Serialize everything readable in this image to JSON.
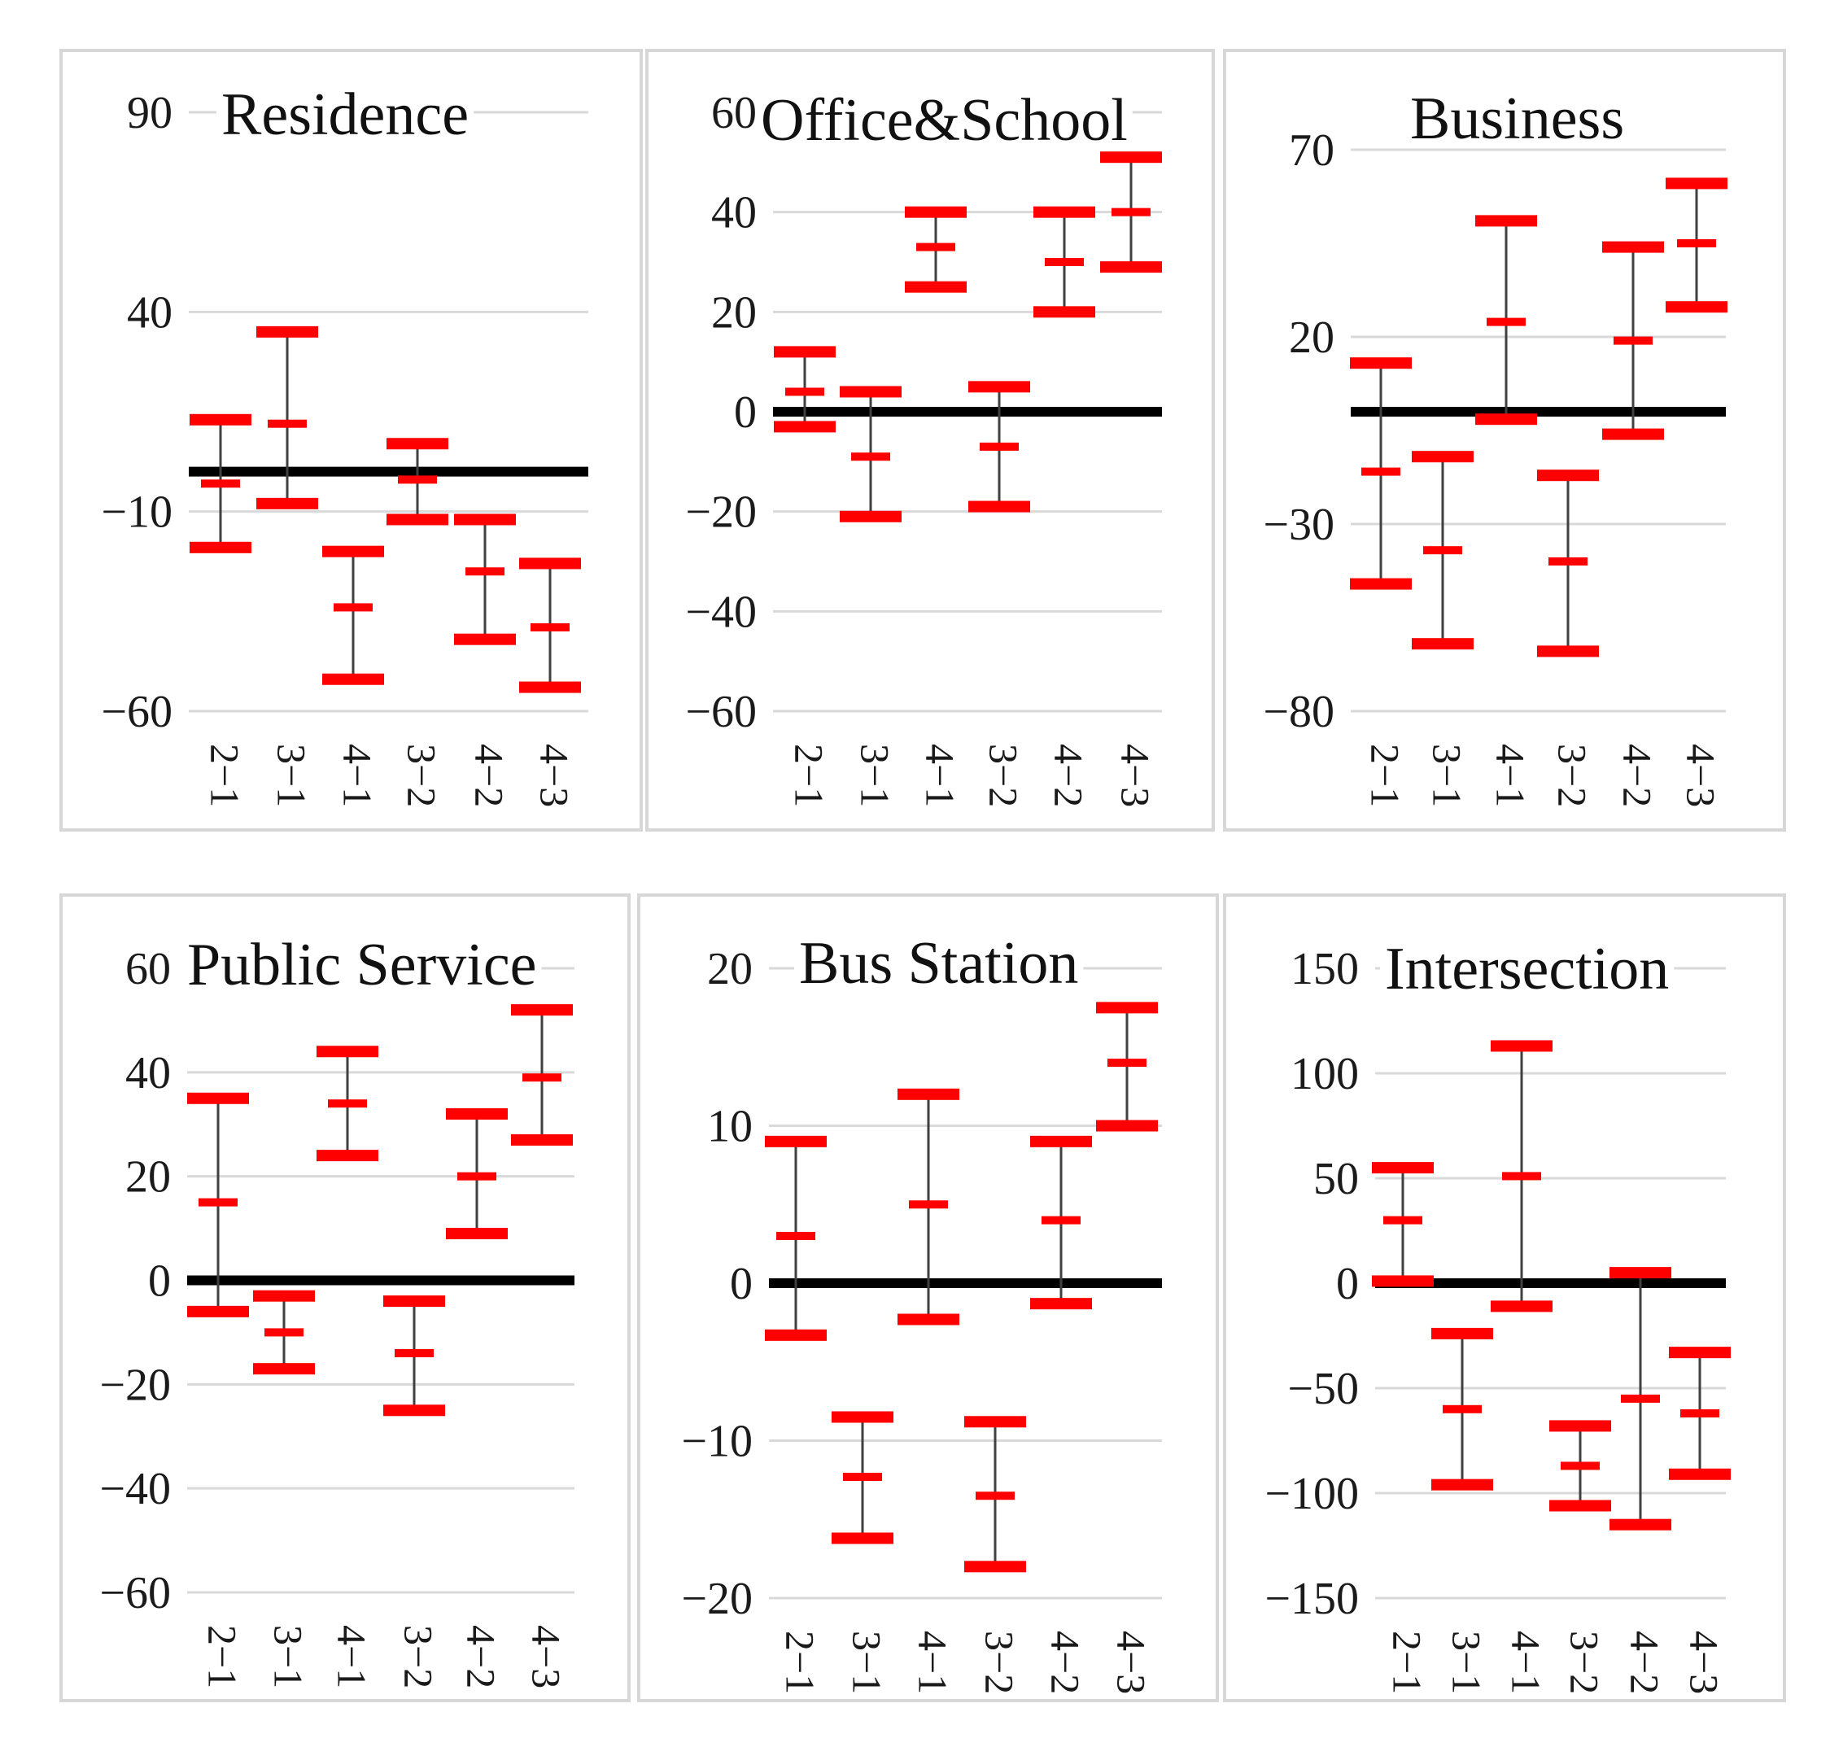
{
  "chart_data": [
    {
      "type": "errorbar",
      "title": "Residence",
      "categories": [
        "2−1",
        "3−1",
        "4−1",
        "3−2",
        "4−2",
        "4−3"
      ],
      "ylim": [
        -60,
        90
      ],
      "yticks": [
        90,
        40,
        -10,
        -60
      ],
      "ytick_labels": [
        "90",
        "40",
        "−10",
        "−60"
      ],
      "series": [
        {
          "name": "upper",
          "values": [
            13,
            35,
            -20,
            7,
            -12,
            -23
          ]
        },
        {
          "name": "mean",
          "values": [
            -3,
            12,
            -34,
            -2,
            -25,
            -39
          ]
        },
        {
          "name": "lower",
          "values": [
            -19,
            -8,
            -52,
            -12,
            -42,
            -54
          ]
        }
      ]
    },
    {
      "type": "errorbar",
      "title": "Office&School",
      "categories": [
        "2−1",
        "3−1",
        "4−1",
        "3−2",
        "4−2",
        "4−3"
      ],
      "ylim": [
        -60,
        60
      ],
      "yticks": [
        60,
        40,
        20,
        0,
        -20,
        -40,
        -60
      ],
      "ytick_labels": [
        "60",
        "40",
        "20",
        "0",
        "−20",
        "−40",
        "−60"
      ],
      "series": [
        {
          "name": "upper",
          "values": [
            12,
            4,
            40,
            5,
            40,
            51
          ]
        },
        {
          "name": "mean",
          "values": [
            4,
            -9,
            33,
            -7,
            30,
            40
          ]
        },
        {
          "name": "lower",
          "values": [
            -3,
            -21,
            25,
            -19,
            20,
            29
          ]
        }
      ]
    },
    {
      "type": "errorbar",
      "title": "Business",
      "categories": [
        "2−1",
        "3−1",
        "4−1",
        "3−2",
        "4−2",
        "4−3"
      ],
      "ylim": [
        -80,
        70
      ],
      "yticks": [
        70,
        20,
        -30,
        -80
      ],
      "ytick_labels": [
        "70",
        "20",
        "−30",
        "−80"
      ],
      "series": [
        {
          "name": "upper",
          "values": [
            13,
            -12,
            51,
            -17,
            44,
            61
          ]
        },
        {
          "name": "mean",
          "values": [
            -16,
            -37,
            24,
            -40,
            19,
            45
          ]
        },
        {
          "name": "lower",
          "values": [
            -46,
            -62,
            -2,
            -64,
            -6,
            28
          ]
        }
      ]
    },
    {
      "type": "errorbar",
      "title": "Public Service",
      "categories": [
        "2−1",
        "3−1",
        "4−1",
        "3−2",
        "4−2",
        "4−3"
      ],
      "ylim": [
        -60,
        60
      ],
      "yticks": [
        60,
        40,
        20,
        0,
        -20,
        -40,
        -60
      ],
      "ytick_labels": [
        "60",
        "40",
        "20",
        "0",
        "−20",
        "−40",
        "−60"
      ],
      "series": [
        {
          "name": "upper",
          "values": [
            35,
            -3,
            44,
            -4,
            32,
            52
          ]
        },
        {
          "name": "mean",
          "values": [
            15,
            -10,
            34,
            -14,
            20,
            39
          ]
        },
        {
          "name": "lower",
          "values": [
            -6,
            -17,
            24,
            -25,
            9,
            27
          ]
        }
      ]
    },
    {
      "type": "errorbar",
      "title": "Bus Station",
      "categories": [
        "2−1",
        "3−1",
        "4−1",
        "3−2",
        "4−2",
        "4−3"
      ],
      "ylim": [
        -20,
        20
      ],
      "yticks": [
        20,
        10,
        0,
        -10,
        -20
      ],
      "ytick_labels": [
        "20",
        "10",
        "0",
        "−10",
        "−20"
      ],
      "series": [
        {
          "name": "upper",
          "values": [
            9,
            -8.5,
            12,
            -8.8,
            9,
            17.5
          ]
        },
        {
          "name": "mean",
          "values": [
            3,
            -12.3,
            5,
            -13.5,
            4,
            14
          ]
        },
        {
          "name": "lower",
          "values": [
            -3.3,
            -16.2,
            -2.3,
            -18,
            -1.3,
            10
          ]
        }
      ]
    },
    {
      "type": "errorbar",
      "title": "Intersection",
      "categories": [
        "2−1",
        "3−1",
        "4−1",
        "3−2",
        "4−2",
        "4−3"
      ],
      "ylim": [
        -150,
        150
      ],
      "yticks": [
        150,
        100,
        50,
        0,
        -50,
        -100,
        -150
      ],
      "ytick_labels": [
        "150",
        "100",
        "50",
        "0",
        "−50",
        "−100",
        "−150"
      ],
      "series": [
        {
          "name": "upper",
          "values": [
            55,
            -24,
            113,
            -68,
            5,
            -33
          ]
        },
        {
          "name": "mean",
          "values": [
            30,
            -60,
            51,
            -87,
            -55,
            -62
          ]
        },
        {
          "name": "lower",
          "values": [
            1,
            -96,
            -11,
            -106,
            -115,
            -91
          ]
        }
      ]
    }
  ]
}
